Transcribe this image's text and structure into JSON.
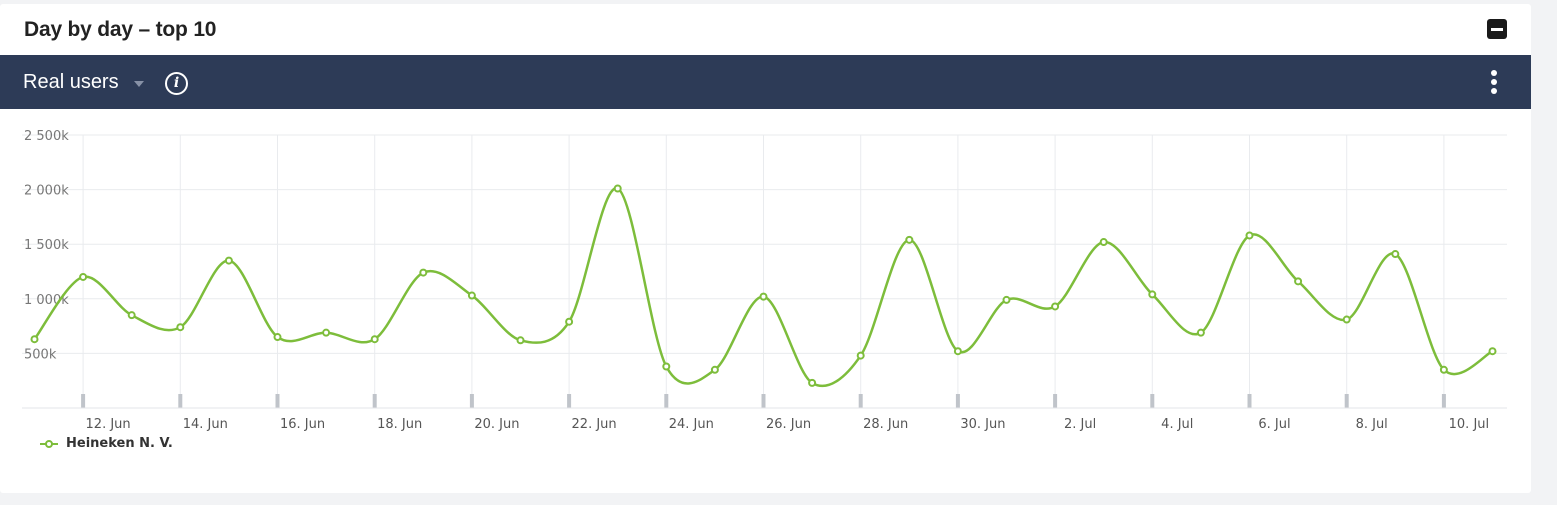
{
  "header": {
    "title": "Day by day – top 10"
  },
  "toolbar": {
    "metric": "Real users"
  },
  "colors": {
    "series": "#7dbd3b",
    "toolbar_bg": "#2d3b57"
  },
  "chart_data": {
    "type": "line",
    "smooth": true,
    "grid": true,
    "legend_position": "bottom-left",
    "ylim": [
      0,
      2500000
    ],
    "yticks": [
      500000,
      1000000,
      1500000,
      2000000,
      2500000
    ],
    "ytick_labels": [
      "500k",
      "1 000k",
      "1 500k",
      "2 000k",
      "2 500k"
    ],
    "x": [
      "11. Jun",
      "12. Jun",
      "13. Jun",
      "14. Jun",
      "15. Jun",
      "16. Jun",
      "17. Jun",
      "18. Jun",
      "19. Jun",
      "20. Jun",
      "21. Jun",
      "22. Jun",
      "23. Jun",
      "24. Jun",
      "25. Jun",
      "26. Jun",
      "27. Jun",
      "28. Jun",
      "29. Jun",
      "30. Jun",
      "1. Jul",
      "2. Jul",
      "3. Jul",
      "4. Jul",
      "5. Jul",
      "6. Jul",
      "7. Jul",
      "8. Jul",
      "9. Jul",
      "10. Jul",
      "11. Jul"
    ],
    "xtick_labels": [
      "12. Jun",
      "14. Jun",
      "16. Jun",
      "18. Jun",
      "20. Jun",
      "22. Jun",
      "24. Jun",
      "26. Jun",
      "28. Jun",
      "30. Jun",
      "2. Jul",
      "4. Jul",
      "6. Jul",
      "8. Jul",
      "10. Jul"
    ],
    "series": [
      {
        "name": "Heineken N. V.",
        "values": [
          630000,
          1200000,
          850000,
          740000,
          1350000,
          650000,
          690000,
          630000,
          1240000,
          1030000,
          620000,
          790000,
          2010000,
          380000,
          350000,
          1020000,
          230000,
          480000,
          1540000,
          520000,
          990000,
          930000,
          1520000,
          1040000,
          690000,
          1580000,
          1160000,
          810000,
          1410000,
          350000,
          520000
        ]
      }
    ]
  }
}
